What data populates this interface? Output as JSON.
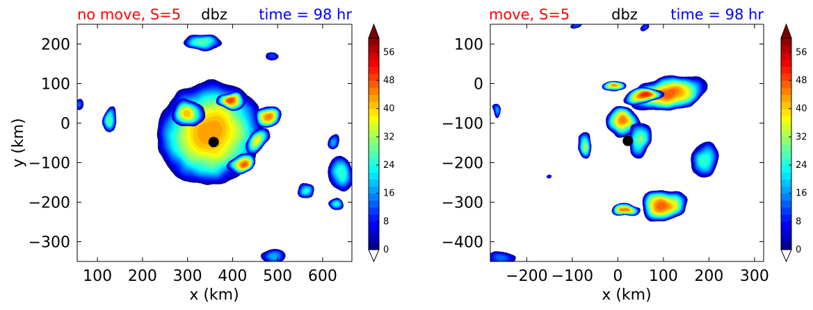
{
  "chart_data": [
    {
      "type": "heatmap",
      "subtype": "filled-contour",
      "title_left": "no move, S=5",
      "title_center": "dbz",
      "title_right": "time = 98 hr",
      "title_colors": {
        "left": "#ff0000",
        "center": "#000000",
        "right": "#0000ff"
      },
      "xlabel": "x (km)",
      "ylabel": "y (km)",
      "xlim": [
        55,
        665
      ],
      "ylim": [
        -350,
        250
      ],
      "xticks": [
        100,
        200,
        300,
        400,
        500,
        600
      ],
      "yticks": [
        200,
        100,
        0,
        -100,
        -200,
        -300
      ],
      "center_marker": {
        "x": 358,
        "y": -48
      },
      "fields": [
        {
          "x": 350,
          "y": -25,
          "rx": 120,
          "ry": 130,
          "peak": 42,
          "rot": -30
        },
        {
          "x": 395,
          "y": 55,
          "rx": 38,
          "ry": 22,
          "peak": 48,
          "rot": 0
        },
        {
          "x": 420,
          "y": -105,
          "rx": 34,
          "ry": 26,
          "peak": 46,
          "rot": -30
        },
        {
          "x": 480,
          "y": 20,
          "rx": 28,
          "ry": 30,
          "peak": 44,
          "rot": 0
        },
        {
          "x": 300,
          "y": 25,
          "rx": 40,
          "ry": 38,
          "peak": 40,
          "rot": 0
        },
        {
          "x": 455,
          "y": -45,
          "rx": 22,
          "ry": 40,
          "peak": 36,
          "rot": 30
        },
        {
          "x": 335,
          "y": 205,
          "rx": 45,
          "ry": 20,
          "peak": 26,
          "rot": 0
        },
        {
          "x": 128,
          "y": 10,
          "rx": 14,
          "ry": 28,
          "peak": 26,
          "rot": 0
        },
        {
          "x": 640,
          "y": -130,
          "rx": 32,
          "ry": 42,
          "peak": 24,
          "rot": 0
        },
        {
          "x": 630,
          "y": -205,
          "rx": 16,
          "ry": 18,
          "peak": 22,
          "rot": 0
        },
        {
          "x": 562,
          "y": -170,
          "rx": 20,
          "ry": 18,
          "peak": 22,
          "rot": 0
        },
        {
          "x": 625,
          "y": -45,
          "rx": 12,
          "ry": 18,
          "peak": 16,
          "rot": 0
        },
        {
          "x": 490,
          "y": -335,
          "rx": 30,
          "ry": 16,
          "peak": 16,
          "rot": 0
        },
        {
          "x": 490,
          "y": 170,
          "rx": 14,
          "ry": 10,
          "peak": 10,
          "rot": 0
        },
        {
          "x": 60,
          "y": 45,
          "rx": 8,
          "ry": 12,
          "peak": 12,
          "rot": 0
        }
      ]
    },
    {
      "type": "heatmap",
      "subtype": "filled-contour",
      "title_left": "move, S=5",
      "title_center": "dbz",
      "title_right": "time = 98 hr",
      "title_colors": {
        "left": "#ff0000",
        "center": "#000000",
        "right": "#0000ff"
      },
      "xlabel": "x (km)",
      "ylabel": "",
      "xlim": [
        -280,
        320
      ],
      "ylim": [
        -450,
        150
      ],
      "xticks": [
        -200,
        -100,
        0,
        100,
        200,
        300
      ],
      "yticks": [
        100,
        0,
        -100,
        -200,
        -300,
        -400
      ],
      "center_marker": {
        "x": 22,
        "y": -145
      },
      "fields": [
        {
          "x": 110,
          "y": -25,
          "rx": 85,
          "ry": 45,
          "peak": 46,
          "rot": -10
        },
        {
          "x": 60,
          "y": -30,
          "rx": 45,
          "ry": 22,
          "peak": 50,
          "rot": -10
        },
        {
          "x": 10,
          "y": -95,
          "rx": 40,
          "ry": 40,
          "peak": 44,
          "rot": 0
        },
        {
          "x": -10,
          "y": -5,
          "rx": 25,
          "ry": 15,
          "peak": 42,
          "rot": 0
        },
        {
          "x": 50,
          "y": -140,
          "rx": 25,
          "ry": 45,
          "peak": 28,
          "rot": 0
        },
        {
          "x": 190,
          "y": -190,
          "rx": 30,
          "ry": 45,
          "peak": 24,
          "rot": 0
        },
        {
          "x": 100,
          "y": -310,
          "rx": 50,
          "ry": 42,
          "peak": 46,
          "rot": 0
        },
        {
          "x": 15,
          "y": -320,
          "rx": 30,
          "ry": 17,
          "peak": 44,
          "rot": 0
        },
        {
          "x": -75,
          "y": -160,
          "rx": 17,
          "ry": 30,
          "peak": 30,
          "rot": 0
        },
        {
          "x": -270,
          "y": -65,
          "rx": 8,
          "ry": 18,
          "peak": 16,
          "rot": 0
        },
        {
          "x": -255,
          "y": -445,
          "rx": 30,
          "ry": 18,
          "peak": 12,
          "rot": 0
        },
        {
          "x": -90,
          "y": 145,
          "rx": 12,
          "ry": 8,
          "peak": 10,
          "rot": 0
        },
        {
          "x": 60,
          "y": 145,
          "rx": 10,
          "ry": 8,
          "peak": 10,
          "rot": 0
        },
        {
          "x": -150,
          "y": -235,
          "rx": 6,
          "ry": 5,
          "peak": 8,
          "rot": 0
        }
      ]
    }
  ],
  "colorbar": {
    "min": 0,
    "max": 60,
    "step": 2,
    "ticks": [
      0,
      8,
      16,
      24,
      32,
      40,
      48,
      56
    ],
    "extend": "both",
    "colormap": "jet"
  }
}
